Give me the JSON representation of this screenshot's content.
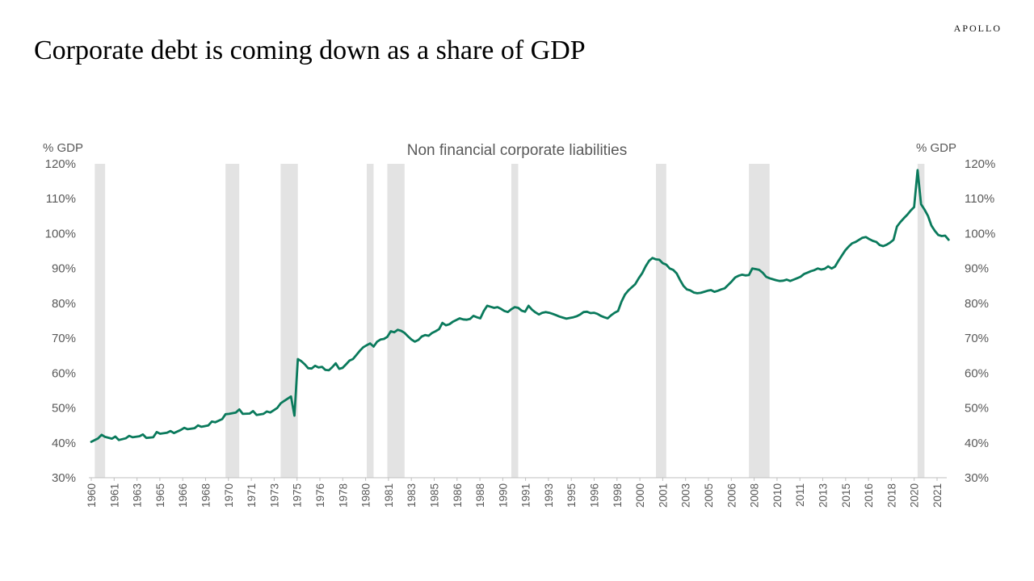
{
  "brand": "APOLLO",
  "title": "Corporate debt is coming down as a share of GDP",
  "chart_data": {
    "type": "line",
    "title": "Non financial corporate liabilities",
    "ylabel_left": "% GDP",
    "ylabel_right": "% GDP",
    "ylim": [
      30,
      120
    ],
    "yticks": [
      "30%",
      "40%",
      "50%",
      "60%",
      "70%",
      "80%",
      "90%",
      "100%",
      "110%",
      "120%"
    ],
    "xlim": [
      1960.0,
      2022.0
    ],
    "x_tick_labels": [
      "1960",
      "1961",
      "1963",
      "1965",
      "1966",
      "1968",
      "1970",
      "1971",
      "1973",
      "1975",
      "1976",
      "1978",
      "1980",
      "1981",
      "1983",
      "1985",
      "1986",
      "1988",
      "1990",
      "1991",
      "1993",
      "1995",
      "1996",
      "1998",
      "2000",
      "2001",
      "2003",
      "2005",
      "2006",
      "2008",
      "2010",
      "2011",
      "2013",
      "2015",
      "2016",
      "2018",
      "2020",
      "2021"
    ],
    "line_color": "#0a7a5c",
    "recession_color": "#e3e3e3",
    "recessions": [
      [
        1960.25,
        1961.0
      ],
      [
        1969.75,
        1970.75
      ],
      [
        1973.75,
        1975.0
      ],
      [
        1980.0,
        1980.5
      ],
      [
        1981.5,
        1982.75
      ],
      [
        1990.5,
        1991.0
      ],
      [
        2001.0,
        2001.75
      ],
      [
        2007.75,
        2009.25
      ],
      [
        2020.0,
        2020.5
      ]
    ],
    "series": [
      {
        "name": "Non financial corporate liabilities (% GDP)",
        "points": [
          [
            1960.0,
            40.3
          ],
          [
            1960.5,
            41.3
          ],
          [
            1960.75,
            42.3
          ],
          [
            1961.0,
            41.7
          ],
          [
            1961.5,
            41.2
          ],
          [
            1961.75,
            41.8
          ],
          [
            1962.0,
            40.8
          ],
          [
            1962.5,
            41.3
          ],
          [
            1962.75,
            42.0
          ],
          [
            1963.0,
            41.6
          ],
          [
            1963.5,
            41.9
          ],
          [
            1963.75,
            42.4
          ],
          [
            1964.0,
            41.4
          ],
          [
            1964.5,
            41.6
          ],
          [
            1964.75,
            43.1
          ],
          [
            1965.0,
            42.6
          ],
          [
            1965.5,
            42.9
          ],
          [
            1965.75,
            43.4
          ],
          [
            1966.0,
            42.8
          ],
          [
            1966.5,
            43.7
          ],
          [
            1966.75,
            44.3
          ],
          [
            1967.0,
            43.9
          ],
          [
            1967.5,
            44.2
          ],
          [
            1967.75,
            45.0
          ],
          [
            1968.0,
            44.6
          ],
          [
            1968.5,
            45.0
          ],
          [
            1968.75,
            46.1
          ],
          [
            1969.0,
            45.9
          ],
          [
            1969.5,
            46.8
          ],
          [
            1969.75,
            48.2
          ],
          [
            1970.0,
            48.3
          ],
          [
            1970.5,
            48.7
          ],
          [
            1970.75,
            49.6
          ],
          [
            1971.0,
            48.3
          ],
          [
            1971.5,
            48.4
          ],
          [
            1971.75,
            49.1
          ],
          [
            1972.0,
            48.0
          ],
          [
            1972.5,
            48.3
          ],
          [
            1972.75,
            49.0
          ],
          [
            1973.0,
            48.7
          ],
          [
            1973.5,
            50.0
          ],
          [
            1973.75,
            51.3
          ],
          [
            1974.0,
            52.0
          ],
          [
            1974.5,
            53.3
          ],
          [
            1974.75,
            47.8
          ],
          [
            1975.0,
            64.0
          ],
          [
            1975.25,
            63.4
          ],
          [
            1975.5,
            62.5
          ],
          [
            1975.75,
            61.4
          ],
          [
            1976.0,
            61.3
          ],
          [
            1976.25,
            62.1
          ],
          [
            1976.5,
            61.6
          ],
          [
            1976.75,
            61.8
          ],
          [
            1977.0,
            60.9
          ],
          [
            1977.25,
            60.8
          ],
          [
            1977.5,
            61.7
          ],
          [
            1977.75,
            62.8
          ],
          [
            1978.0,
            61.2
          ],
          [
            1978.25,
            61.5
          ],
          [
            1978.5,
            62.5
          ],
          [
            1978.75,
            63.6
          ],
          [
            1979.0,
            64.0
          ],
          [
            1979.25,
            65.2
          ],
          [
            1979.5,
            66.4
          ],
          [
            1979.75,
            67.4
          ],
          [
            1980.0,
            68.0
          ],
          [
            1980.25,
            68.5
          ],
          [
            1980.5,
            67.6
          ],
          [
            1980.75,
            69.0
          ],
          [
            1981.0,
            69.6
          ],
          [
            1981.25,
            69.8
          ],
          [
            1981.5,
            70.4
          ],
          [
            1981.75,
            72.0
          ],
          [
            1982.0,
            71.7
          ],
          [
            1982.25,
            72.4
          ],
          [
            1982.5,
            72.1
          ],
          [
            1982.75,
            71.5
          ],
          [
            1983.0,
            70.5
          ],
          [
            1983.25,
            69.6
          ],
          [
            1983.5,
            69.0
          ],
          [
            1983.75,
            69.5
          ],
          [
            1984.0,
            70.5
          ],
          [
            1984.25,
            70.9
          ],
          [
            1984.5,
            70.7
          ],
          [
            1984.75,
            71.5
          ],
          [
            1985.0,
            72.0
          ],
          [
            1985.25,
            72.6
          ],
          [
            1985.5,
            74.4
          ],
          [
            1985.75,
            73.7
          ],
          [
            1986.0,
            74.0
          ],
          [
            1986.25,
            74.7
          ],
          [
            1986.5,
            75.2
          ],
          [
            1986.75,
            75.7
          ],
          [
            1987.0,
            75.4
          ],
          [
            1987.25,
            75.3
          ],
          [
            1987.5,
            75.5
          ],
          [
            1987.75,
            76.4
          ],
          [
            1988.0,
            76.0
          ],
          [
            1988.25,
            75.7
          ],
          [
            1988.5,
            77.8
          ],
          [
            1988.75,
            79.3
          ],
          [
            1989.0,
            79.0
          ],
          [
            1989.25,
            78.7
          ],
          [
            1989.5,
            78.9
          ],
          [
            1989.75,
            78.4
          ],
          [
            1990.0,
            77.8
          ],
          [
            1990.25,
            77.5
          ],
          [
            1990.5,
            78.3
          ],
          [
            1990.75,
            78.9
          ],
          [
            1991.0,
            78.7
          ],
          [
            1991.25,
            77.9
          ],
          [
            1991.5,
            77.6
          ],
          [
            1991.75,
            79.3
          ],
          [
            1992.0,
            78.2
          ],
          [
            1992.25,
            77.4
          ],
          [
            1992.5,
            76.8
          ],
          [
            1992.75,
            77.3
          ],
          [
            1993.0,
            77.5
          ],
          [
            1993.25,
            77.3
          ],
          [
            1993.5,
            77.0
          ],
          [
            1993.75,
            76.6
          ],
          [
            1994.0,
            76.2
          ],
          [
            1994.25,
            75.9
          ],
          [
            1994.5,
            75.6
          ],
          [
            1994.75,
            75.8
          ],
          [
            1995.0,
            76.0
          ],
          [
            1995.25,
            76.3
          ],
          [
            1995.5,
            76.8
          ],
          [
            1995.75,
            77.5
          ],
          [
            1996.0,
            77.6
          ],
          [
            1996.25,
            77.2
          ],
          [
            1996.5,
            77.3
          ],
          [
            1996.75,
            77.0
          ],
          [
            1997.0,
            76.4
          ],
          [
            1997.25,
            76.0
          ],
          [
            1997.5,
            75.7
          ],
          [
            1997.75,
            76.6
          ],
          [
            1998.0,
            77.3
          ],
          [
            1998.25,
            77.8
          ],
          [
            1998.5,
            80.5
          ],
          [
            1998.75,
            82.5
          ],
          [
            1999.0,
            83.7
          ],
          [
            1999.25,
            84.6
          ],
          [
            1999.5,
            85.5
          ],
          [
            1999.75,
            87.2
          ],
          [
            2000.0,
            88.6
          ],
          [
            2000.25,
            90.6
          ],
          [
            2000.5,
            92.2
          ],
          [
            2000.75,
            93.0
          ],
          [
            2001.0,
            92.6
          ],
          [
            2001.25,
            92.5
          ],
          [
            2001.5,
            91.5
          ],
          [
            2001.75,
            91.1
          ],
          [
            2002.0,
            90.0
          ],
          [
            2002.25,
            89.6
          ],
          [
            2002.5,
            88.6
          ],
          [
            2002.75,
            86.7
          ],
          [
            2003.0,
            85.0
          ],
          [
            2003.25,
            84.0
          ],
          [
            2003.5,
            83.7
          ],
          [
            2003.75,
            83.1
          ],
          [
            2004.0,
            82.9
          ],
          [
            2004.25,
            83.0
          ],
          [
            2004.5,
            83.3
          ],
          [
            2004.75,
            83.6
          ],
          [
            2005.0,
            83.8
          ],
          [
            2005.25,
            83.3
          ],
          [
            2005.5,
            83.6
          ],
          [
            2005.75,
            84.0
          ],
          [
            2006.0,
            84.3
          ],
          [
            2006.25,
            85.3
          ],
          [
            2006.5,
            86.3
          ],
          [
            2006.75,
            87.4
          ],
          [
            2007.0,
            87.9
          ],
          [
            2007.25,
            88.2
          ],
          [
            2007.5,
            88.0
          ],
          [
            2007.75,
            88.1
          ],
          [
            2008.0,
            90.0
          ],
          [
            2008.25,
            89.8
          ],
          [
            2008.5,
            89.6
          ],
          [
            2008.75,
            88.8
          ],
          [
            2009.0,
            87.6
          ],
          [
            2009.25,
            87.2
          ],
          [
            2009.5,
            86.9
          ],
          [
            2009.75,
            86.6
          ],
          [
            2010.0,
            86.4
          ],
          [
            2010.25,
            86.5
          ],
          [
            2010.5,
            86.8
          ],
          [
            2010.75,
            86.4
          ],
          [
            2011.0,
            86.8
          ],
          [
            2011.25,
            87.2
          ],
          [
            2011.5,
            87.6
          ],
          [
            2011.75,
            88.4
          ],
          [
            2012.0,
            88.8
          ],
          [
            2012.25,
            89.2
          ],
          [
            2012.5,
            89.5
          ],
          [
            2012.75,
            90.0
          ],
          [
            2013.0,
            89.7
          ],
          [
            2013.25,
            89.9
          ],
          [
            2013.5,
            90.6
          ],
          [
            2013.75,
            90.0
          ],
          [
            2014.0,
            90.5
          ],
          [
            2014.25,
            92.2
          ],
          [
            2014.5,
            93.7
          ],
          [
            2014.75,
            95.2
          ],
          [
            2015.0,
            96.3
          ],
          [
            2015.25,
            97.2
          ],
          [
            2015.5,
            97.6
          ],
          [
            2015.75,
            98.2
          ],
          [
            2016.0,
            98.8
          ],
          [
            2016.25,
            99.0
          ],
          [
            2016.5,
            98.4
          ],
          [
            2016.75,
            97.9
          ],
          [
            2017.0,
            97.6
          ],
          [
            2017.25,
            96.7
          ],
          [
            2017.5,
            96.4
          ],
          [
            2017.75,
            96.8
          ],
          [
            2018.0,
            97.4
          ],
          [
            2018.25,
            98.2
          ],
          [
            2018.5,
            102.0
          ],
          [
            2018.75,
            103.3
          ],
          [
            2019.0,
            104.4
          ],
          [
            2019.25,
            105.4
          ],
          [
            2019.5,
            106.6
          ],
          [
            2019.75,
            107.6
          ],
          [
            2020.0,
            118.2
          ],
          [
            2020.25,
            108.4
          ],
          [
            2020.5,
            106.9
          ],
          [
            2020.75,
            105.1
          ],
          [
            2021.0,
            102.3
          ],
          [
            2021.25,
            100.8
          ],
          [
            2021.5,
            99.6
          ],
          [
            2021.75,
            99.3
          ],
          [
            2022.0,
            99.4
          ],
          [
            2022.25,
            98.2
          ]
        ]
      }
    ]
  }
}
